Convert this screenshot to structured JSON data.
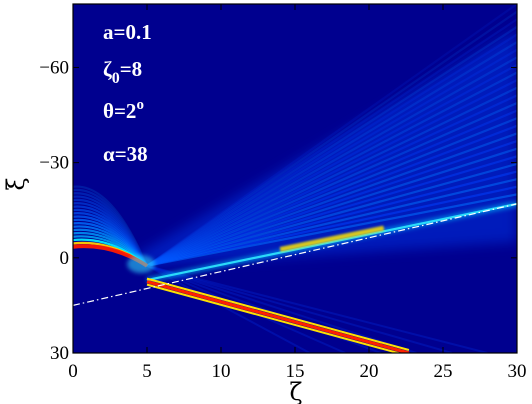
{
  "chart_data": {
    "type": "heatmap",
    "xlabel": "ζ",
    "ylabel": "ξ",
    "xlim": [
      0,
      30
    ],
    "ylim": [
      -80,
      30
    ],
    "y_reversed": true,
    "x_ticks": [
      0,
      5,
      10,
      15,
      20,
      25,
      30
    ],
    "y_ticks": [
      -60,
      -30,
      0,
      30
    ],
    "x_tick_labels": [
      "0",
      "5",
      "10",
      "15",
      "20",
      "25",
      "30"
    ],
    "y_tick_labels": [
      "−60",
      "−30",
      "0",
      "30"
    ],
    "colormap": "jet",
    "background_color": "#00008f",
    "annotations": [
      {
        "id": "a",
        "text": "a=0.1"
      },
      {
        "id": "zeta0",
        "base": "ζ",
        "sub": "0",
        "rest": "=8"
      },
      {
        "id": "theta",
        "base": "θ=2",
        "sup": "o"
      },
      {
        "id": "alpha",
        "text": "α=38"
      }
    ],
    "features": [
      {
        "name": "incident-fringes",
        "description_value": "bright fringe stack near ξ≈-3 to -18 converging toward ζ≈5"
      },
      {
        "name": "transmitted-beam",
        "from": [
          5,
          7.5
        ],
        "to": [
          22.7,
          30
        ],
        "color": "#ff2000"
      },
      {
        "name": "reflected-beam",
        "from": [
          5,
          7
        ],
        "to": [
          30,
          -17
        ],
        "color": "#30e0ff"
      },
      {
        "name": "interface-line",
        "from": [
          0,
          15
        ],
        "to": [
          30,
          -17
        ],
        "style": "dash-dot",
        "color": "#ffffff"
      }
    ]
  }
}
